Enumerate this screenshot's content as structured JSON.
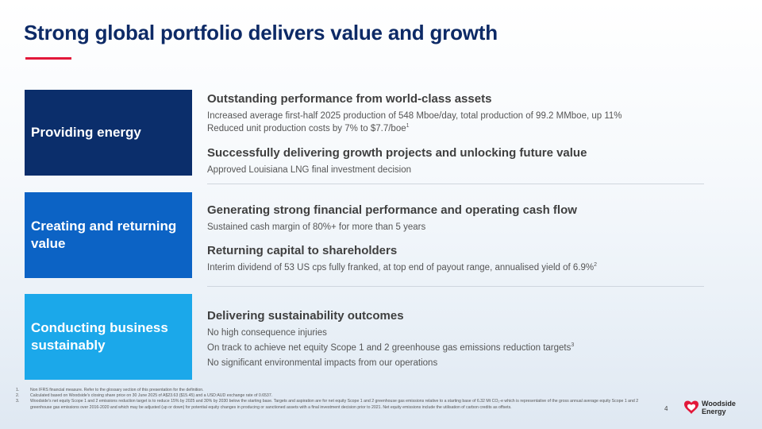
{
  "slide": {
    "title": "Strong global portfolio delivers value and growth",
    "accent_color": "#e2183a",
    "title_color": "#0d2a66"
  },
  "pillars": [
    {
      "label": "Providing energy",
      "color": "#0b2e6b"
    },
    {
      "label": "Creating and returning value",
      "color": "#0c63c5"
    },
    {
      "label": "Conducting business sustainably",
      "color": "#1ba8ea"
    }
  ],
  "sections": {
    "s1": {
      "heading": "Outstanding performance from world-class assets",
      "line1": "Increased average first-half 2025 production of 548 Mboe/day, total production of 99.2 MMboe, up 11%",
      "line2": "Reduced unit production costs by 7% to $7.7/boe",
      "line2_sup": "1"
    },
    "s2": {
      "heading": "Successfully delivering growth projects and unlocking future value",
      "line1": "Approved Louisiana LNG final investment decision"
    },
    "s3": {
      "heading": "Generating strong financial performance and operating cash flow",
      "line1": "Sustained cash margin of 80%+ for more than 5 years"
    },
    "s4": {
      "heading": "Returning capital to shareholders",
      "line1": "Interim dividend of 53 US cps fully franked, at top end of payout range, annualised yield of 6.9%",
      "line1_sup": "2"
    },
    "s5": {
      "heading": "Delivering sustainability outcomes",
      "line1": "No high consequence injuries",
      "line2": "On track to achieve net equity Scope 1 and 2 greenhouse gas emissions reduction targets",
      "line2_sup": "3",
      "line3": "No significant environmental impacts from our operations"
    }
  },
  "footnotes": [
    {
      "num": "1.",
      "text": "Non IFRS financial measure. Refer to the glossary section of this presentation for the definition."
    },
    {
      "num": "2.",
      "text": "Calculated based on Woodside's closing share price on 30 June 2025 of A$23.63 ($15.45) and a USD:AUD exchange rate of 0.6537."
    },
    {
      "num": "3.",
      "text": "Woodside's net equity Scope 1 and 2 emissions reduction target is to reduce 15% by 2025 and 30% by 2030 below the starting base. Targets and aspiration are for net equity Scope 1 and 2 greenhouse gas emissions relative to a starting base of 6.32 Mt CO₂-e which is representative of the gross annual average equity Scope 1 and 2 greenhouse gas emissions over 2016-2020 and which may be adjusted (up or down) for potential equity changes in producing or sanctioned assets with a final investment decision prior to 2021. Net equity emissions include the utilisation of carbon credits as offsets."
    }
  ],
  "page_number": "4",
  "logo": {
    "line1": "Woodside",
    "line2": "Energy",
    "icon": "woodside-logo-icon",
    "color": "#e2183a"
  }
}
